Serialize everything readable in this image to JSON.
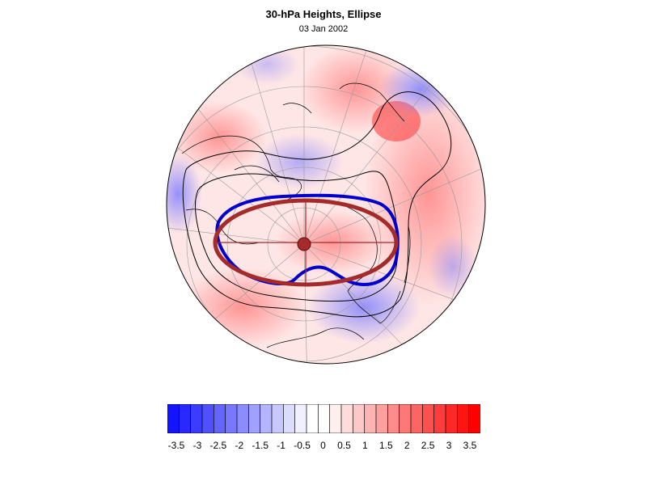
{
  "title": "30-hPa Heights, Ellipse",
  "subtitle": "03 Jan 2002",
  "colorbar": {
    "labels": [
      "-3.5",
      "-3",
      "-2.5",
      "-2",
      "-1.5",
      "-1",
      "-0.5",
      "0",
      "0.5",
      "1",
      "1.5",
      "2",
      "2.5",
      "3",
      "3.5"
    ],
    "colors": [
      "#1414ff",
      "#2828ff",
      "#3c3cff",
      "#5050ff",
      "#6464ff",
      "#7878ff",
      "#8c8cff",
      "#a0a0ff",
      "#b4b4ff",
      "#c8c8ff",
      "#dcdcff",
      "#f0f0ff",
      "#ffffff",
      "#ffffff",
      "#fff0f0",
      "#ffdcdc",
      "#ffc8c8",
      "#ffb4b4",
      "#ffa0a0",
      "#ff8c8c",
      "#ff7878",
      "#ff6464",
      "#ff5050",
      "#ff3c3c",
      "#ff2828",
      "#ff1414",
      "#ff0000"
    ]
  },
  "overlay_colors": {
    "ellipse": "#a52a2a",
    "height_contour": "#0000cd",
    "center_marker": "#a52a2a",
    "reference_contour": "#000000"
  }
}
